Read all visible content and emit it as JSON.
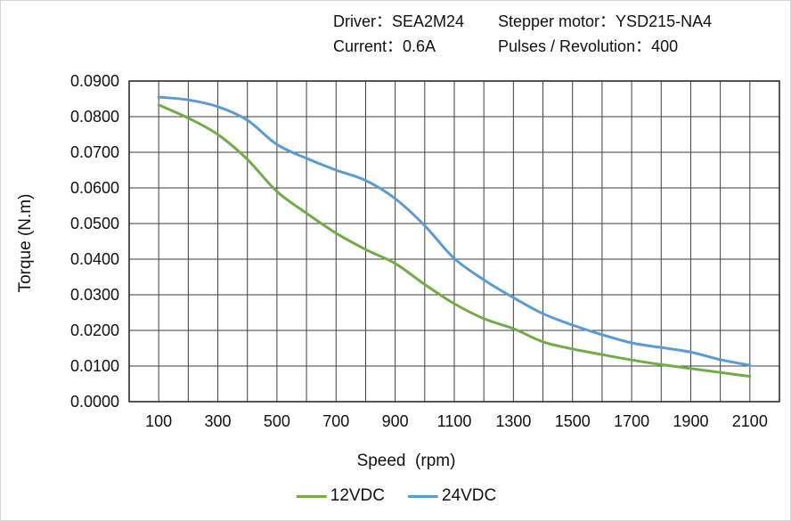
{
  "header": {
    "driver": "Driver：SEA2M24",
    "motor": "Stepper motor：YSD215-NA4",
    "current": "Current：0.6A",
    "pulses": "Pulses / Revolution：400"
  },
  "chart_data": {
    "type": "line",
    "title": "",
    "xlabel": "Speed  (rpm)",
    "ylabel": "Torque (N.m)",
    "xlim": [
      0,
      2200
    ],
    "ylim": [
      0,
      0.09
    ],
    "grid": true,
    "x_grid_step": 100,
    "y_grid_step": 0.01,
    "x_ticks": [
      100,
      300,
      500,
      700,
      900,
      1100,
      1300,
      1500,
      1700,
      1900,
      2100
    ],
    "y_ticks": [
      0,
      0.01,
      0.02,
      0.03,
      0.04,
      0.05,
      0.06,
      0.07,
      0.08,
      0.09
    ],
    "y_tick_decimals": 4,
    "legend_position": "bottom",
    "x": [
      100,
      200,
      300,
      400,
      500,
      600,
      700,
      800,
      900,
      1000,
      1100,
      1200,
      1300,
      1400,
      1500,
      1600,
      1700,
      1800,
      1900,
      2000,
      2100
    ],
    "series": [
      {
        "name": "12VDC",
        "color": "#70AD47",
        "values": [
          0.0833,
          0.0796,
          0.075,
          0.068,
          0.059,
          0.0529,
          0.0473,
          0.0427,
          0.0388,
          0.0329,
          0.0275,
          0.0233,
          0.0205,
          0.0168,
          0.0148,
          0.0132,
          0.0117,
          0.0104,
          0.0093,
          0.0082,
          0.0071
        ]
      },
      {
        "name": "24VDC",
        "color": "#5B9BD5",
        "values": [
          0.0855,
          0.0847,
          0.0828,
          0.079,
          0.0722,
          0.0683,
          0.065,
          0.0621,
          0.057,
          0.0494,
          0.0402,
          0.0342,
          0.0292,
          0.0247,
          0.0215,
          0.0188,
          0.0165,
          0.0152,
          0.0139,
          0.0118,
          0.0102
        ]
      }
    ]
  }
}
